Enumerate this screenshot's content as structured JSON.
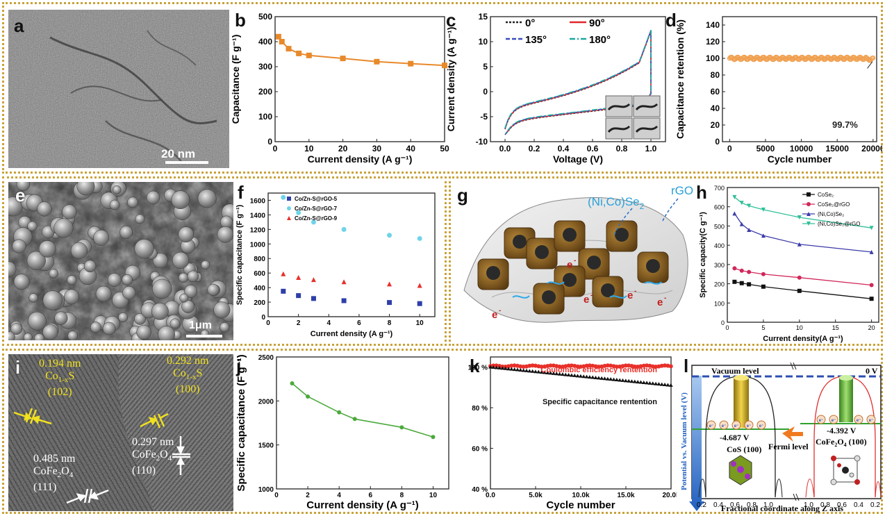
{
  "panels": {
    "a": {
      "letter": "a",
      "scale": "20 nm"
    },
    "b": {
      "letter": "b"
    },
    "c": {
      "letter": "c"
    },
    "d": {
      "letter": "d",
      "annotation": "99.7%"
    },
    "e": {
      "letter": "e",
      "scale": "1μm"
    },
    "f": {
      "letter": "f"
    },
    "g": {
      "letter": "g",
      "label_niCoSe": "(Ni,Co)Se",
      "label_niCoSe_sub": "2",
      "label_rgo": "rGO",
      "electron": "e"
    },
    "h": {
      "letter": "h"
    },
    "i": {
      "letter": "i",
      "ann1": "0.194 nm",
      "ann1b": "Co",
      "ann1b_sub": "1-x",
      "ann1b_end": "S",
      "ann1c": "(102)",
      "ann2": "0.292 nm",
      "ann2b": "Co",
      "ann2b_sub": "1-x",
      "ann2b_end": "S",
      "ann2c": "(100)",
      "ann3": "0.485 nm",
      "ann3b": "CoFe",
      "ann3b_sub": "2",
      "ann3b_mid": "O",
      "ann3b_sub2": "4",
      "ann3c": "(111)",
      "ann4": "0.297 nm",
      "ann4b": "CoFe",
      "ann4b_sub": "2",
      "ann4b_mid": "O",
      "ann4b_sub2": "4",
      "ann4c": "(110)"
    },
    "j": {
      "letter": "j"
    },
    "k": {
      "letter": "k"
    },
    "l": {
      "letter": "l",
      "vacuum": "Vacuum level",
      "zero": "0 V",
      "fermi": "Fermi level",
      "v1": "-4.687 V",
      "m1": "CoS (100)",
      "v2": "-4.392 V",
      "m2a": "CoFe",
      "m2sub1": "2",
      "m2b": "O",
      "m2sub2": "4",
      "m2c": " (100)",
      "ylabel": "Potential vs. Vacuum level (V)",
      "xlabel": "Fractional coordinate along Z axis",
      "ticks": [
        "0.2",
        "0.4",
        "0.6",
        "0.8",
        "1.0",
        "1.0",
        "0.8",
        "0.6",
        "0.4",
        "0.2"
      ]
    }
  },
  "chart_data": [
    {
      "id": "b",
      "type": "line",
      "xlabel": "Current density (A g⁻¹)",
      "ylabel": "Capacitance (F g⁻¹)",
      "xlim": [
        0,
        50
      ],
      "ylim": [
        0,
        500
      ],
      "xticks": [
        0,
        10,
        20,
        30,
        40,
        50
      ],
      "yticks": [
        0,
        100,
        200,
        300,
        400,
        500
      ],
      "color": "#e8892a",
      "series": [
        {
          "x": [
            1,
            2,
            4,
            7,
            10,
            20,
            30,
            40,
            50
          ],
          "y": [
            420,
            400,
            372,
            353,
            345,
            333,
            320,
            312,
            305
          ]
        }
      ]
    },
    {
      "id": "c",
      "type": "line",
      "xlabel": "Voltage (V)",
      "ylabel": "Current density (A g⁻¹)",
      "xlim": [
        -0.1,
        1.1
      ],
      "ylim": [
        -10,
        15
      ],
      "xticks": [
        0.0,
        0.2,
        0.4,
        0.6,
        0.8,
        1.0
      ],
      "yticks": [
        -10,
        -5,
        0,
        5,
        10,
        15
      ],
      "legend": [
        "0°",
        "90°",
        "135°",
        "180°"
      ],
      "legend_colors": [
        "#222222",
        "#e0262a",
        "#3a4cc0",
        "#1fa8a0"
      ]
    },
    {
      "id": "d",
      "type": "scatter",
      "xlabel": "Cycle number",
      "ylabel": "Capacitance retention (%)",
      "xlim": [
        -1000,
        20500
      ],
      "ylim": [
        0,
        150
      ],
      "xticks": [
        0,
        5000,
        10000,
        15000,
        20000
      ],
      "yticks": [
        0,
        20,
        40,
        60,
        80,
        100,
        120,
        140
      ],
      "color": "#f0a050",
      "retention_final": 99.7
    },
    {
      "id": "f",
      "type": "scatter",
      "xlabel": "Current density (A g⁻¹)",
      "ylabel": "Specific capacitance (F g⁻¹)",
      "xlim": [
        0,
        11
      ],
      "ylim": [
        0,
        1700
      ],
      "xticks": [
        0,
        2,
        4,
        6,
        8,
        10
      ],
      "yticks": [
        0,
        200,
        400,
        600,
        800,
        1000,
        1200,
        1400,
        1600
      ],
      "series": [
        {
          "name": "Co/Zn-S@rGO-5",
          "color": "#2e3fa8",
          "marker": "square",
          "x": [
            1,
            2,
            3,
            5,
            8,
            10
          ],
          "y": [
            350,
            290,
            250,
            220,
            195,
            180
          ]
        },
        {
          "name": "Co/Zn-S@rGO-7",
          "color": "#6fd4e8",
          "marker": "circle",
          "x": [
            1,
            2,
            3,
            5,
            8,
            10
          ],
          "y": [
            1640,
            1430,
            1300,
            1200,
            1120,
            1075
          ]
        },
        {
          "name": "Co/Zn-S@rGO-9",
          "color": "#e8302a",
          "marker": "triangle",
          "x": [
            1,
            2,
            3,
            5,
            8,
            10
          ],
          "y": [
            590,
            540,
            510,
            480,
            450,
            430
          ]
        }
      ]
    },
    {
      "id": "h",
      "type": "line",
      "xlabel": "Current density(A g⁻¹)",
      "ylabel": "Specific capacity(C g⁻¹)",
      "xlim": [
        0,
        21
      ],
      "ylim": [
        0,
        700
      ],
      "xticks": [
        0,
        5,
        10,
        15,
        20
      ],
      "yticks": [
        0,
        100,
        200,
        300,
        400,
        500,
        600,
        700
      ],
      "series": [
        {
          "name": "CoSe₂",
          "color": "#111111",
          "marker": "square",
          "x": [
            1,
            2,
            3,
            5,
            10,
            20
          ],
          "y": [
            210,
            203,
            197,
            185,
            163,
            122
          ]
        },
        {
          "name": "CoSe₂@rGO",
          "color": "#d0285a",
          "marker": "circle",
          "x": [
            1,
            2,
            3,
            5,
            10,
            20
          ],
          "y": [
            280,
            268,
            261,
            250,
            232,
            193
          ]
        },
        {
          "name": "(Ni,Co)Se₂",
          "color": "#3b3ba8",
          "marker": "triangle",
          "x": [
            1,
            2,
            3,
            5,
            10,
            20
          ],
          "y": [
            565,
            510,
            480,
            450,
            405,
            365
          ]
        },
        {
          "name": "(Ni,Co)Se₂@rGO",
          "color": "#2fbf98",
          "marker": "tri-down",
          "x": [
            1,
            2,
            3,
            5,
            10,
            20
          ],
          "y": [
            650,
            620,
            605,
            585,
            545,
            490
          ]
        }
      ]
    },
    {
      "id": "j",
      "type": "line",
      "xlabel": "Current density (A g⁻¹)",
      "ylabel": "Specific capacitance (F g⁻¹)",
      "xlim": [
        0,
        11
      ],
      "ylim": [
        1000,
        2500
      ],
      "xticks": [
        0,
        2,
        4,
        6,
        8,
        10
      ],
      "yticks": [
        1000,
        1500,
        2000,
        2500
      ],
      "color": "#4caa3c",
      "series": [
        {
          "x": [
            1,
            2,
            4,
            5,
            8,
            10
          ],
          "y": [
            2200,
            2050,
            1870,
            1795,
            1700,
            1590
          ]
        }
      ]
    },
    {
      "id": "k",
      "type": "scatter",
      "xlabel": "Cycle number",
      "ylabel": "",
      "xlim": [
        0,
        20000
      ],
      "ylim": [
        40,
        105
      ],
      "xticks": [
        "0.0",
        "5.0k",
        "10.0k",
        "15.0k",
        "20.0k"
      ],
      "yticks": [
        "40 %",
        "60 %",
        "80 %",
        "100 %"
      ],
      "labels": [
        "Coulombic efficiency rentention",
        "Specific capacitance rentention"
      ],
      "colors": [
        "#e8302a",
        "#111111"
      ]
    }
  ]
}
